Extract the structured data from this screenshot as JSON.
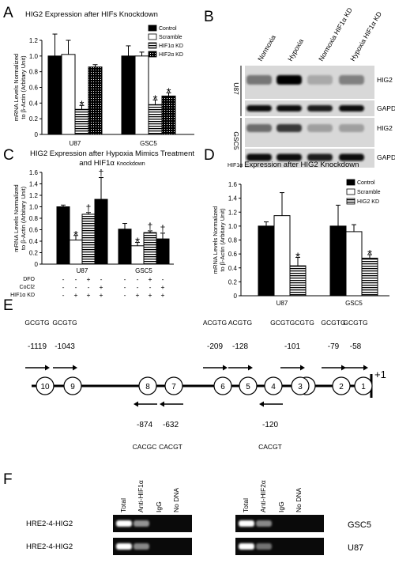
{
  "chart_data": [
    {
      "panel": "A",
      "type": "bar",
      "title": "HIG2 Expression after HIFs Knockdown",
      "ylabel": "mRNA Levels Normalized to β-Actin (Arbitary Unit)",
      "ylim": [
        0,
        1.2
      ],
      "yticks": [
        "0",
        "0.2",
        "0.4",
        "0.6",
        "0.8",
        "1.0",
        "1.2"
      ],
      "categories": [
        "U87",
        "GSC5"
      ],
      "series": [
        {
          "name": "Control",
          "values": [
            1.0,
            1.0
          ],
          "errors": [
            0.28,
            0.13
          ],
          "fill": "solid"
        },
        {
          "name": "Scramble",
          "values": [
            1.02,
            1.0
          ],
          "errors": [
            0.18,
            0.05
          ],
          "fill": "white"
        },
        {
          "name": "HIF1α KD",
          "values": [
            0.32,
            0.38
          ],
          "errors": [
            0.05,
            0.06
          ],
          "fill": "hstripe"
        },
        {
          "name": "HIF2α KD",
          "values": [
            0.86,
            0.49
          ],
          "errors": [
            0.03,
            0.04
          ],
          "fill": "dots"
        }
      ],
      "significance": [
        {
          "category": 0,
          "series": 2,
          "mark": "*"
        },
        {
          "category": 1,
          "series": 2,
          "mark": "*"
        },
        {
          "category": 1,
          "series": 3,
          "mark": "*"
        }
      ]
    },
    {
      "panel": "C",
      "type": "bar",
      "title": "HIG2 Expression after Hypoxia Mimics Treatment",
      "title_line2_prefix": "and HIF1α ",
      "title_line2_suffix": "Knockdown",
      "ylabel": "mRNA Levels Normalized to β-Actin (Arbitary Unit)",
      "ylim": [
        0,
        1.6
      ],
      "yticks": [
        "0",
        "0.2",
        "0.4",
        "0.6",
        "0.8",
        "1.0",
        "1.2",
        "1.4",
        "1.6"
      ],
      "categories": [
        "U87",
        "GSC5"
      ],
      "series_fills": [
        "solid",
        "white",
        "hstripe",
        "solid"
      ],
      "values": [
        [
          1.0,
          0.42,
          0.87,
          1.13
        ],
        [
          0.61,
          0.32,
          0.55,
          0.44
        ]
      ],
      "errors": [
        [
          0.03,
          0.08,
          0.03,
          0.38
        ],
        [
          0.1,
          0.06,
          0.03,
          0.1
        ]
      ],
      "significance": [
        {
          "category": 0,
          "series": 1,
          "mark": "*"
        },
        {
          "category": 0,
          "series": 2,
          "mark": "†"
        },
        {
          "category": 0,
          "series": 3,
          "mark": "†"
        },
        {
          "category": 1,
          "series": 1,
          "mark": "*"
        },
        {
          "category": 1,
          "series": 2,
          "mark": "†"
        },
        {
          "category": 1,
          "series": 3,
          "mark": "†"
        }
      ],
      "conditions": [
        {
          "label": "DFO",
          "marks": [
            "-",
            "-",
            "+",
            "-",
            "-",
            "-",
            "+",
            "-"
          ]
        },
        {
          "label": "CoCl2",
          "marks": [
            "-",
            "-",
            "-",
            "+",
            "-",
            "-",
            "-",
            "+"
          ]
        },
        {
          "label": "HIF1α KD",
          "marks": [
            "-",
            "+",
            "+",
            "+",
            "-",
            "+",
            "+",
            "+"
          ]
        }
      ]
    },
    {
      "panel": "D",
      "type": "bar",
      "title_prefix": "HIF1α ",
      "title_rest": "Expression after HIG2 Knockdown",
      "ylabel": "mRNA Levels Normalized to β-Actin (Arbitary Unit)",
      "ylim": [
        0,
        1.6
      ],
      "yticks": [
        "0",
        "0.2",
        "0.4",
        "0.6",
        "0.8",
        "1.0",
        "1.2",
        "1.4",
        "1.6"
      ],
      "categories": [
        "U87",
        "GSC5"
      ],
      "series": [
        {
          "name": "Control",
          "values": [
            1.0,
            1.0
          ],
          "errors": [
            0.06,
            0.3
          ],
          "fill": "solid"
        },
        {
          "name": "Scramble",
          "values": [
            1.15,
            0.92
          ],
          "errors": [
            0.33,
            0.1
          ],
          "fill": "white"
        },
        {
          "name": "HIG2 KD",
          "values": [
            0.43,
            0.54
          ],
          "errors": [
            0.12,
            0.05
          ],
          "fill": "hstripe"
        }
      ],
      "significance": [
        {
          "category": 0,
          "series": 2,
          "mark": "*"
        },
        {
          "category": 1,
          "series": 2,
          "mark": "*"
        }
      ]
    }
  ],
  "figure": {
    "panel_letters": [
      "A",
      "B",
      "C",
      "D",
      "E",
      "F"
    ],
    "blot": {
      "lanes": [
        "Normoxia",
        "Hypoxia",
        "Normoxia HIF1α KD",
        "Hypoxia HIF1α KD"
      ],
      "groups": [
        "U87",
        "GSC5"
      ],
      "bands": [
        "HIG2",
        "GAPDH"
      ],
      "hig2_intensity": [
        [
          0.45,
          1.0,
          0.2,
          0.4
        ],
        [
          0.5,
          0.75,
          0.25,
          0.25
        ]
      ],
      "gapdh_intensity": [
        [
          0.95,
          0.95,
          0.9,
          0.95
        ],
        [
          0.95,
          0.95,
          0.9,
          0.95
        ]
      ]
    },
    "promoter": {
      "plus_one": "+1",
      "sites": [
        {
          "num": "10",
          "pos": "-1119",
          "seq": "GCGTG",
          "strand": "forward"
        },
        {
          "num": "9",
          "pos": "-1043",
          "seq": "GCGTG",
          "strand": "forward"
        },
        {
          "num": "8",
          "pos": "-874",
          "seq": "CACGC",
          "strand": "reverse"
        },
        {
          "num": "7",
          "pos": "-632",
          "seq": "CACGT",
          "strand": "reverse"
        },
        {
          "num": "6",
          "pos": "-209",
          "seq": "ACGTG",
          "strand": "forward"
        },
        {
          "num": "5",
          "pos": "-128",
          "seq": "ACGTG",
          "strand": "forward"
        },
        {
          "num": "4",
          "pos": "-120",
          "seq": "CACGT",
          "strand": "reverse"
        },
        {
          "num": "3",
          "pos": "-101",
          "seq": "GCGTGCGTG",
          "strand": "forward"
        },
        {
          "num": "2",
          "pos": "-79",
          "seq": "GCGTG",
          "strand": "forward"
        },
        {
          "num": "1",
          "pos": "-58",
          "seq": "GCGTG",
          "strand": "forward"
        }
      ]
    },
    "chip": {
      "lanes_left": [
        "Total",
        "Anti-HIF1α",
        "IgG",
        "No DNA"
      ],
      "lanes_right": [
        "Total",
        "Anti-HIF2α",
        "IgG",
        "No DNA"
      ],
      "rows": [
        {
          "label": "HRE2-4-HIG2",
          "cell": "GSC5",
          "left": [
            1.0,
            0.5,
            0,
            0
          ],
          "right": [
            1.0,
            0.45,
            0,
            0
          ]
        },
        {
          "label": "HRE2-4-HIG2",
          "cell": "U87",
          "left": [
            1.0,
            0.45,
            0,
            0
          ],
          "right": [
            1.0,
            0.35,
            0,
            0
          ]
        }
      ]
    }
  }
}
